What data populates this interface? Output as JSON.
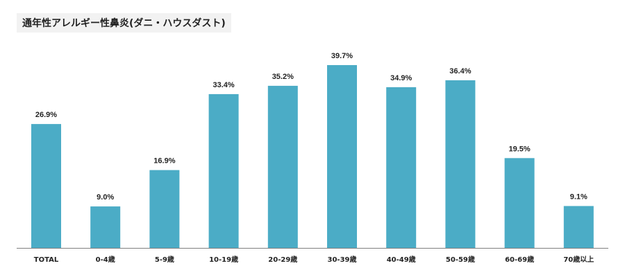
{
  "title": "通年性アレルギー性鼻炎(ダニ・ハウスダスト)",
  "colors": {
    "bar": "#4bacc6",
    "axis": "#7f7f7f",
    "title_bg": "#f2f2f2",
    "text": "#222222"
  },
  "chart_data": {
    "type": "bar",
    "categories": [
      "TOTAL",
      "0-4歳",
      "5-9歳",
      "10-19歳",
      "20-29歳",
      "30-39歳",
      "40-49歳",
      "50-59歳",
      "60-69歳",
      "70歳以上"
    ],
    "values": [
      26.9,
      9.0,
      16.9,
      33.4,
      35.2,
      39.7,
      34.9,
      36.4,
      19.5,
      9.1
    ],
    "value_labels": [
      "26.9%",
      "9.0%",
      "16.9%",
      "33.4%",
      "35.2%",
      "39.7%",
      "34.9%",
      "36.4%",
      "19.5%",
      "9.1%"
    ],
    "unit": "%",
    "ylim": [
      0,
      40
    ],
    "grid": false,
    "legend": "none",
    "title": "通年性アレルギー性鼻炎(ダニ・ハウスダスト)",
    "xlabel": "",
    "ylabel": ""
  }
}
